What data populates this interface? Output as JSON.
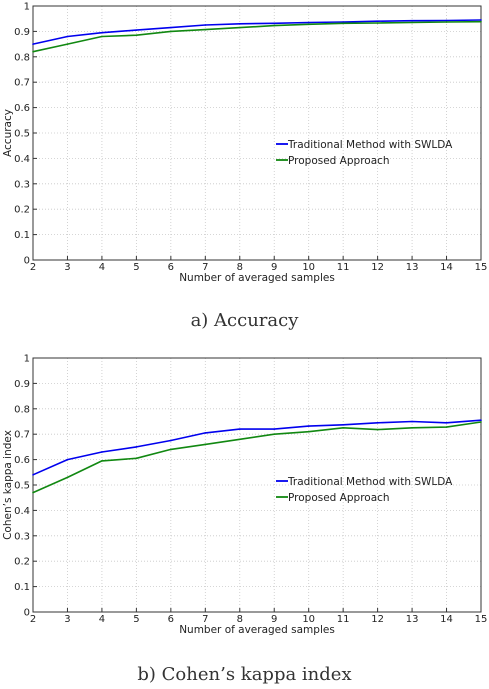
{
  "captions": [
    "a) Accuracy",
    "b) Cohen’s kappa index"
  ],
  "chart_data": [
    {
      "type": "line",
      "xlabel": "Number of averaged samples",
      "ylabel": "Accuracy",
      "x": [
        2,
        3,
        4,
        5,
        6,
        7,
        8,
        9,
        10,
        11,
        12,
        13,
        14,
        15
      ],
      "xlim": [
        2,
        15
      ],
      "ylim": [
        0,
        1
      ],
      "xticks": [
        2,
        3,
        4,
        5,
        6,
        7,
        8,
        9,
        10,
        11,
        12,
        13,
        14,
        15
      ],
      "yticks": [
        0,
        0.1,
        0.2,
        0.3,
        0.4,
        0.5,
        0.6,
        0.7,
        0.8,
        0.9,
        1
      ],
      "grid": true,
      "legend_position": "right",
      "series": [
        {
          "name": "Traditional Method with SWLDA",
          "color": "#0000ee",
          "values": [
            0.85,
            0.88,
            0.895,
            0.905,
            0.915,
            0.925,
            0.93,
            0.932,
            0.935,
            0.937,
            0.94,
            0.942,
            0.943,
            0.945
          ]
        },
        {
          "name": "Proposed Approach",
          "color": "#118811",
          "values": [
            0.82,
            0.85,
            0.88,
            0.885,
            0.9,
            0.907,
            0.915,
            0.923,
            0.928,
            0.932,
            0.933,
            0.935,
            0.937,
            0.938
          ]
        }
      ]
    },
    {
      "type": "line",
      "xlabel": "Number of averaged samples",
      "ylabel": "Cohen’s kappa index",
      "x": [
        2,
        3,
        4,
        5,
        6,
        7,
        8,
        9,
        10,
        11,
        12,
        13,
        14,
        15
      ],
      "xlim": [
        2,
        15
      ],
      "ylim": [
        0,
        1
      ],
      "xticks": [
        2,
        3,
        4,
        5,
        6,
        7,
        8,
        9,
        10,
        11,
        12,
        13,
        14,
        15
      ],
      "yticks": [
        0,
        0.1,
        0.2,
        0.3,
        0.4,
        0.5,
        0.6,
        0.7,
        0.8,
        0.9,
        1
      ],
      "grid": true,
      "legend_position": "right",
      "series": [
        {
          "name": "Traditional Method with SWLDA",
          "color": "#0000ee",
          "values": [
            0.54,
            0.6,
            0.63,
            0.65,
            0.675,
            0.705,
            0.72,
            0.72,
            0.732,
            0.737,
            0.745,
            0.75,
            0.745,
            0.755
          ]
        },
        {
          "name": "Proposed Approach",
          "color": "#118811",
          "values": [
            0.47,
            0.53,
            0.595,
            0.605,
            0.64,
            0.66,
            0.68,
            0.7,
            0.71,
            0.725,
            0.718,
            0.725,
            0.728,
            0.748
          ]
        }
      ]
    }
  ]
}
